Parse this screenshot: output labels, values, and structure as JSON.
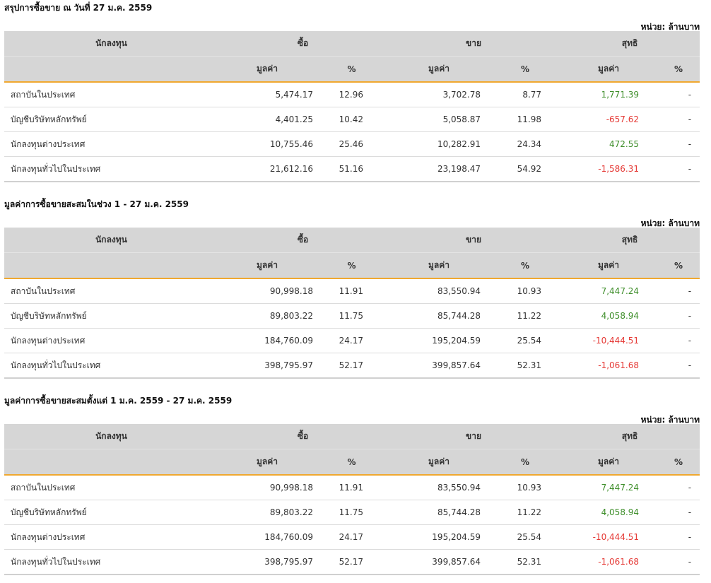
{
  "headers": {
    "investor": "นักลงทุน",
    "buy": "ซื้อ",
    "sell": "ขาย",
    "net": "สุทธิ",
    "value": "มูลค่า",
    "percent": "%"
  },
  "sections": [
    {
      "title": "สรุปการซื้อขาย ณ วันที่ 27 ม.ค. 2559",
      "unit": "หน่วย: ล้านบาท",
      "rows": [
        {
          "investor": "สถาบันในประเทศ",
          "buy_value": "5,474.17",
          "buy_pct": "12.96",
          "sell_value": "3,702.78",
          "sell_pct": "8.77",
          "net_value": "1,771.39",
          "net_pct": "-",
          "net_sign": "pos"
        },
        {
          "investor": "บัญชีบริษัทหลักทรัพย์",
          "buy_value": "4,401.25",
          "buy_pct": "10.42",
          "sell_value": "5,058.87",
          "sell_pct": "11.98",
          "net_value": "-657.62",
          "net_pct": "-",
          "net_sign": "neg"
        },
        {
          "investor": "นักลงทุนต่างประเทศ",
          "buy_value": "10,755.46",
          "buy_pct": "25.46",
          "sell_value": "10,282.91",
          "sell_pct": "24.34",
          "net_value": "472.55",
          "net_pct": "-",
          "net_sign": "pos"
        },
        {
          "investor": "นักลงทุนทั่วไปในประเทศ",
          "buy_value": "21,612.16",
          "buy_pct": "51.16",
          "sell_value": "23,198.47",
          "sell_pct": "54.92",
          "net_value": "-1,586.31",
          "net_pct": "-",
          "net_sign": "neg"
        }
      ]
    },
    {
      "title": "มูลค่าการซื้อขายสะสมในช่วง 1 - 27 ม.ค. 2559",
      "unit": "หน่วย: ล้านบาท",
      "rows": [
        {
          "investor": "สถาบันในประเทศ",
          "buy_value": "90,998.18",
          "buy_pct": "11.91",
          "sell_value": "83,550.94",
          "sell_pct": "10.93",
          "net_value": "7,447.24",
          "net_pct": "-",
          "net_sign": "pos"
        },
        {
          "investor": "บัญชีบริษัทหลักทรัพย์",
          "buy_value": "89,803.22",
          "buy_pct": "11.75",
          "sell_value": "85,744.28",
          "sell_pct": "11.22",
          "net_value": "4,058.94",
          "net_pct": "-",
          "net_sign": "pos"
        },
        {
          "investor": "นักลงทุนต่างประเทศ",
          "buy_value": "184,760.09",
          "buy_pct": "24.17",
          "sell_value": "195,204.59",
          "sell_pct": "25.54",
          "net_value": "-10,444.51",
          "net_pct": "-",
          "net_sign": "neg"
        },
        {
          "investor": "นักลงทุนทั่วไปในประเทศ",
          "buy_value": "398,795.97",
          "buy_pct": "52.17",
          "sell_value": "399,857.64",
          "sell_pct": "52.31",
          "net_value": "-1,061.68",
          "net_pct": "-",
          "net_sign": "neg"
        }
      ]
    },
    {
      "title": "มูลค่าการซื้อขายสะสมตั้งแต่ 1 ม.ค. 2559 - 27 ม.ค. 2559",
      "unit": "หน่วย: ล้านบาท",
      "rows": [
        {
          "investor": "สถาบันในประเทศ",
          "buy_value": "90,998.18",
          "buy_pct": "11.91",
          "sell_value": "83,550.94",
          "sell_pct": "10.93",
          "net_value": "7,447.24",
          "net_pct": "-",
          "net_sign": "pos"
        },
        {
          "investor": "บัญชีบริษัทหลักทรัพย์",
          "buy_value": "89,803.22",
          "buy_pct": "11.75",
          "sell_value": "85,744.28",
          "sell_pct": "11.22",
          "net_value": "4,058.94",
          "net_pct": "-",
          "net_sign": "pos"
        },
        {
          "investor": "นักลงทุนต่างประเทศ",
          "buy_value": "184,760.09",
          "buy_pct": "24.17",
          "sell_value": "195,204.59",
          "sell_pct": "25.54",
          "net_value": "-10,444.51",
          "net_pct": "-",
          "net_sign": "neg"
        },
        {
          "investor": "นักลงทุนทั่วไปในประเทศ",
          "buy_value": "398,795.97",
          "buy_pct": "52.17",
          "sell_value": "399,857.64",
          "sell_pct": "52.31",
          "net_value": "-1,061.68",
          "net_pct": "-",
          "net_sign": "neg"
        }
      ]
    }
  ]
}
